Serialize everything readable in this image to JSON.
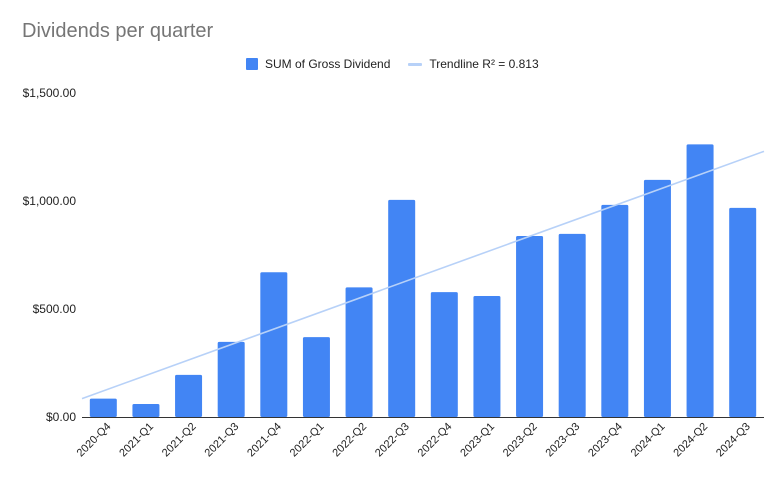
{
  "chart_data": {
    "type": "bar",
    "title": "Dividends per quarter",
    "categories": [
      "2020-Q4",
      "2021-Q1",
      "2021-Q2",
      "2021-Q3",
      "2021-Q4",
      "2022-Q1",
      "2022-Q2",
      "2022-Q3",
      "2022-Q4",
      "2023-Q1",
      "2023-Q2",
      "2023-Q3",
      "2023-Q4",
      "2024-Q1",
      "2024-Q2",
      "2024-Q3"
    ],
    "series": [
      {
        "name": "SUM of Gross Dividend",
        "values": [
          85,
          60,
          195,
          348,
          670,
          370,
          600,
          1005,
          578,
          560,
          838,
          848,
          982,
          1098,
          1262,
          968
        ],
        "color": "#4285f4"
      }
    ],
    "trendline": {
      "label": "Trendline R² = 0.813",
      "start": 85,
      "end": 1230,
      "color": "#b7d1f8"
    },
    "yticks": [
      "$0.00",
      "$500.00",
      "$1,000.00",
      "$1,500.00"
    ],
    "ytick_values": [
      0,
      500,
      1000,
      1500
    ],
    "ylim": [
      0,
      1500
    ],
    "grid": false,
    "legend_position": "top"
  }
}
